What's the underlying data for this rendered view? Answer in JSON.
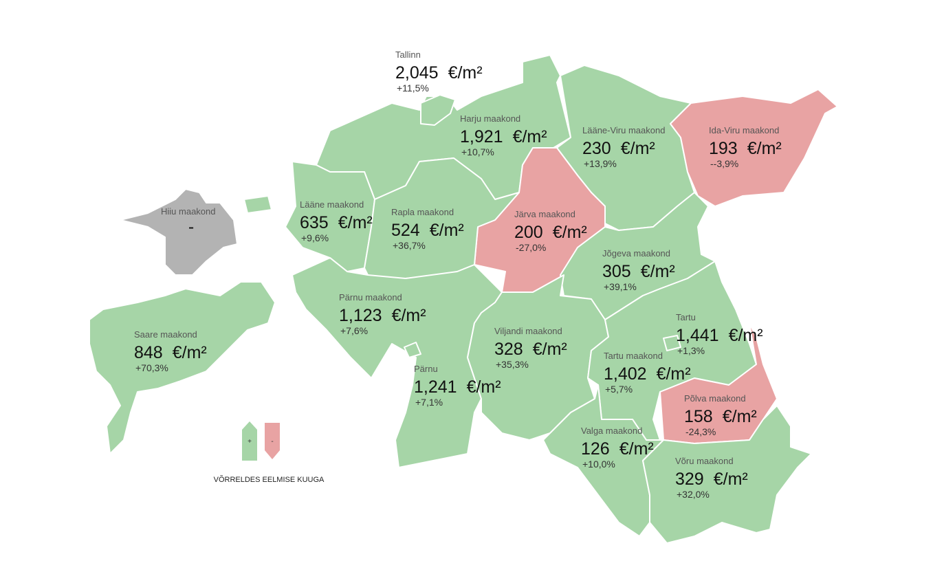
{
  "unit": "€/m²",
  "legend": {
    "up": {
      "symbol": "+",
      "color": "#a6d5a7"
    },
    "down": {
      "symbol": "-",
      "color": "#e8a3a3"
    },
    "caption": "VÕRRELDES EELMISE KUUGA"
  },
  "no_data_color": "#b3b3b3",
  "regions": [
    {
      "name": "Tallinn",
      "price": "2,045",
      "change": "+11,5%",
      "color": "#a6d5a7"
    },
    {
      "name": "Harju maakond",
      "price": "1,921",
      "change": "+10,7%",
      "color": "#a6d5a7"
    },
    {
      "name": "Lääne-Viru maakond",
      "price": "230",
      "change": "+13,9%",
      "color": "#a6d5a7"
    },
    {
      "name": "Ida-Viru maakond",
      "price": "193",
      "change": "--3,9%",
      "color": "#e8a3a3"
    },
    {
      "name": "Hiiu maakond",
      "price": "-",
      "color": "#b3b3b3"
    },
    {
      "name": "Lääne maakond",
      "price": "635",
      "change": "+9,6%",
      "color": "#a6d5a7"
    },
    {
      "name": "Rapla maakond",
      "price": "524",
      "change": "+36,7%",
      "color": "#a6d5a7"
    },
    {
      "name": "Järva maakond",
      "price": "200",
      "change": "-27,0%",
      "color": "#e8a3a3"
    },
    {
      "name": "Jõgeva maakond",
      "price": "305",
      "change": "+39,1%",
      "color": "#a6d5a7"
    },
    {
      "name": "Pärnu maakond",
      "price": "1,123",
      "change": "+7,6%",
      "color": "#a6d5a7"
    },
    {
      "name": "Saare maakond",
      "price": "848",
      "change": "+70,3%",
      "color": "#a6d5a7"
    },
    {
      "name": "Viljandi maakond",
      "price": "328",
      "change": "+35,3%",
      "color": "#a6d5a7"
    },
    {
      "name": "Tartu",
      "price": "1,441",
      "change": "+1,3%",
      "color": "#a6d5a7"
    },
    {
      "name": "Tartu maakond",
      "price": "1,402",
      "change": "+5,7%",
      "color": "#a6d5a7"
    },
    {
      "name": "Pärnu",
      "price": "1,241",
      "change": "+7,1%",
      "color": "#a6d5a7"
    },
    {
      "name": "Põlva maakond",
      "price": "158",
      "change": "-24,3%",
      "color": "#e8a3a3"
    },
    {
      "name": "Valga maakond",
      "price": "126",
      "change": "+10,0%",
      "color": "#a6d5a7"
    },
    {
      "name": "Võru maakond",
      "price": "329",
      "change": "+32,0%",
      "color": "#a6d5a7"
    }
  ]
}
